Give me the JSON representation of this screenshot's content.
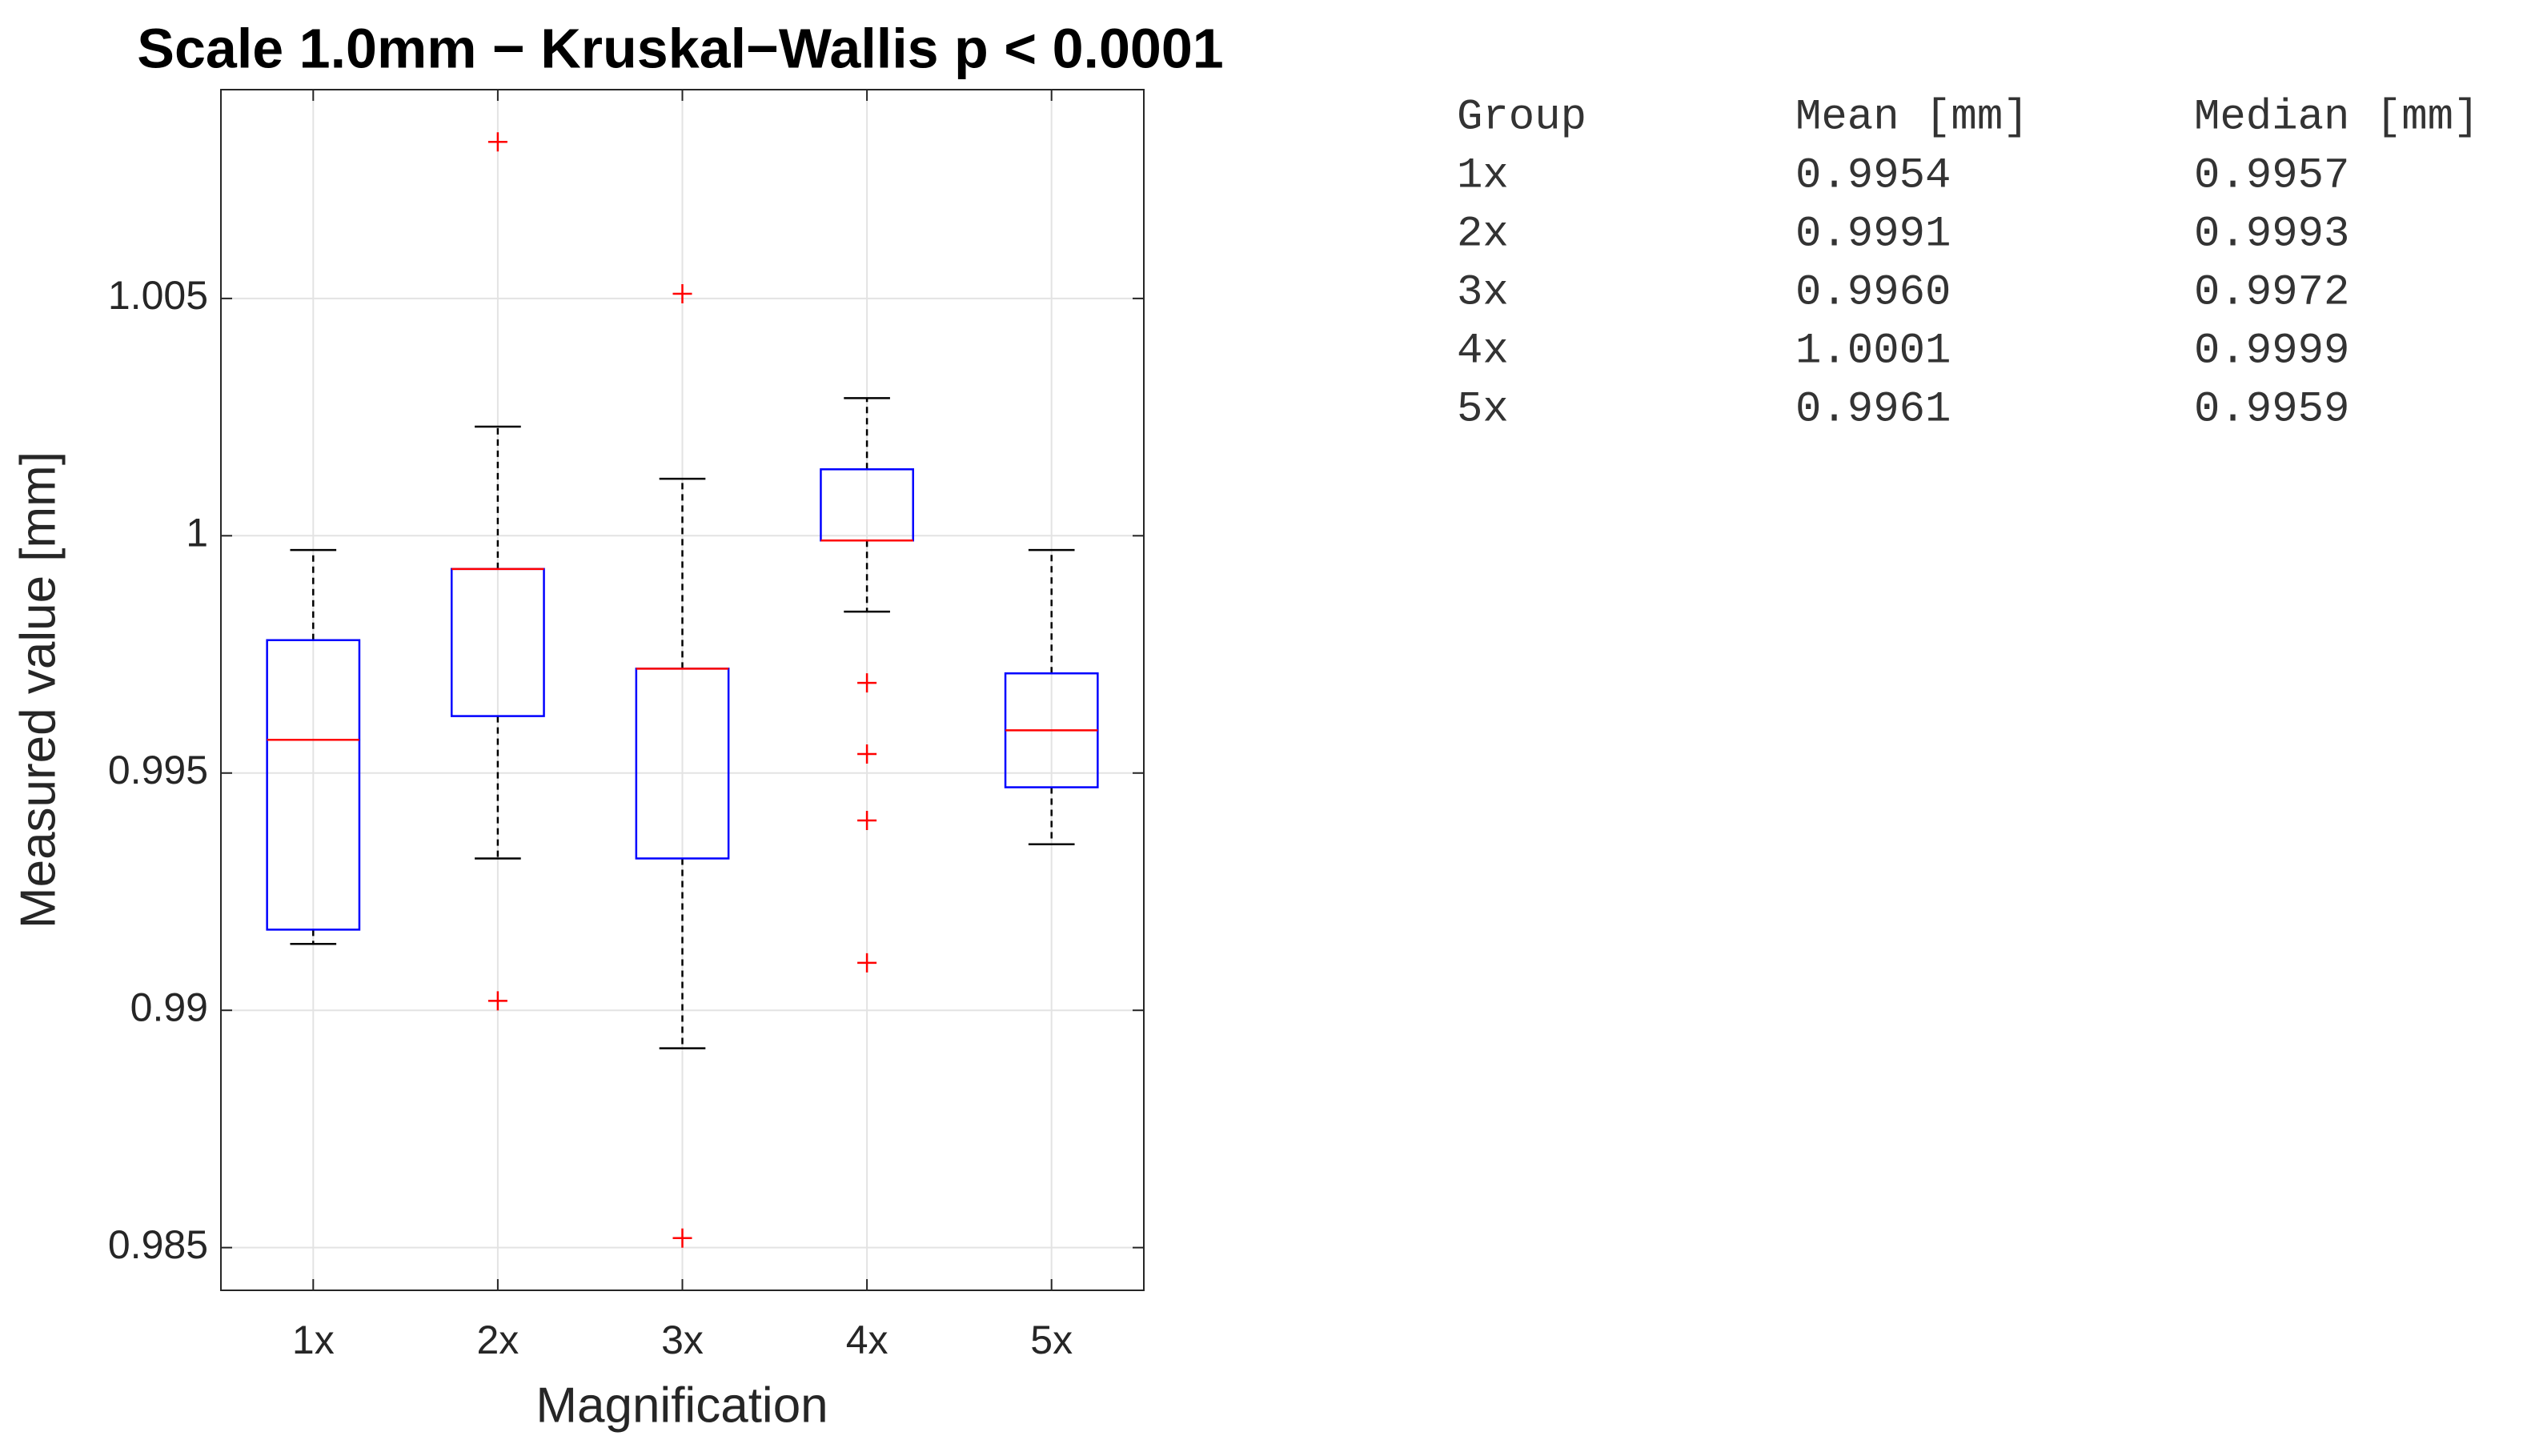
{
  "chart_data": {
    "type": "box",
    "title": "Scale 1.0mm − Kruskal−Wallis p < 0.0001",
    "xlabel": "Magnification",
    "ylabel": "Measured value [mm]",
    "categories": [
      "1x",
      "2x",
      "3x",
      "4x",
      "5x"
    ],
    "boxes": [
      {
        "whisker_low": 0.9914,
        "q1": 0.9917,
        "median": 0.9957,
        "q3": 0.9978,
        "whisker_high": 0.9997,
        "outliers": []
      },
      {
        "whisker_low": 0.9932,
        "q1": 0.9962,
        "median": 0.9993,
        "q3": 0.9993,
        "whisker_high": 1.0023,
        "outliers": [
          1.0083,
          0.9902
        ]
      },
      {
        "whisker_low": 0.9892,
        "q1": 0.9932,
        "median": 0.9972,
        "q3": 0.9972,
        "whisker_high": 1.0012,
        "outliers": [
          1.0051,
          0.9852
        ]
      },
      {
        "whisker_low": 0.9984,
        "q1": 0.9999,
        "median": 0.9999,
        "q3": 1.0014,
        "whisker_high": 1.0029,
        "outliers": [
          0.9969,
          0.9954,
          0.994,
          0.991
        ]
      },
      {
        "whisker_low": 0.9935,
        "q1": 0.9947,
        "median": 0.9959,
        "q3": 0.9971,
        "whisker_high": 0.9997,
        "outliers": []
      }
    ],
    "box_color": "#0000ff",
    "median_color": "#ff0000",
    "whisker_color": "#000000",
    "outlier_color": "#ff0000",
    "ylim": [
      0.9841,
      1.0094
    ],
    "yticks": [
      0.985,
      0.99,
      0.995,
      1,
      1.005
    ],
    "grid": true
  },
  "table": {
    "header": [
      "Group",
      "Mean [mm]",
      "Median [mm]"
    ],
    "rows": [
      [
        "1x",
        "0.9954",
        "0.9957"
      ],
      [
        "2x",
        "0.9991",
        "0.9993"
      ],
      [
        "3x",
        "0.9960",
        "0.9972"
      ],
      [
        "4x",
        "1.0001",
        "0.9999"
      ],
      [
        "5x",
        "0.9961",
        "0.9959"
      ]
    ]
  }
}
